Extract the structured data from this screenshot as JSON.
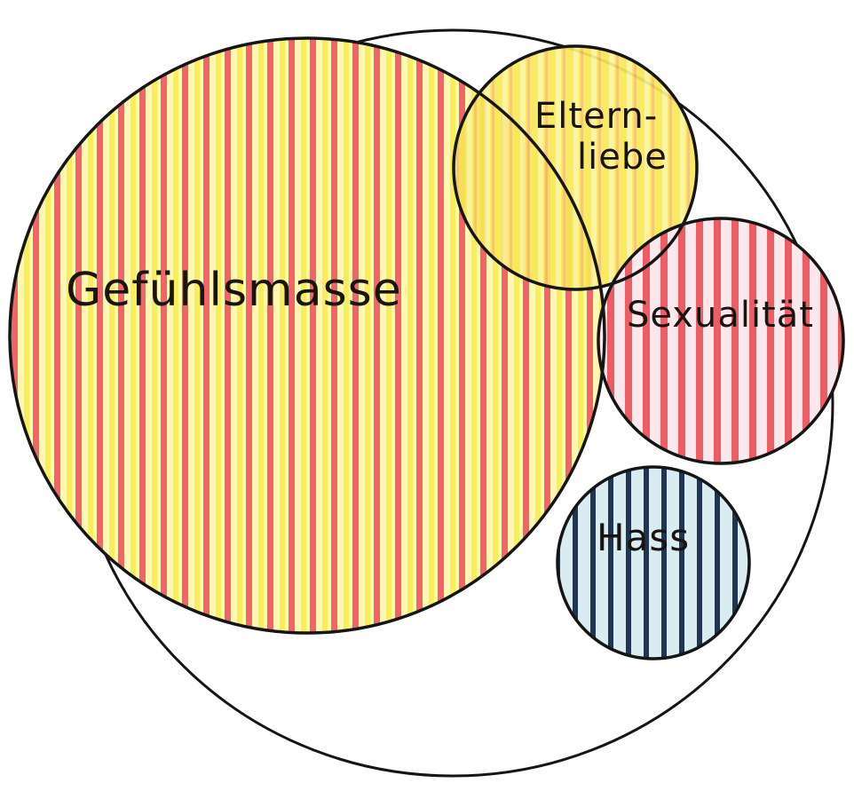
{
  "diagram": {
    "labels": {
      "gefuehlsmasse": "Gefühlsmasse",
      "elternliebe_line1": "Eltern-",
      "elternliebe_line2": "liebe",
      "sexualitaet": "Sexualität",
      "hass": "Hass"
    },
    "colors": {
      "paper": "#ffffff",
      "outline": "#151515",
      "yellow": "#f7ee5c",
      "red": "#f0646a",
      "hass_navy": "#1f3550",
      "hass_light": "#d8ecf2",
      "sexualitaet_light": "#fbe8ec"
    }
  }
}
